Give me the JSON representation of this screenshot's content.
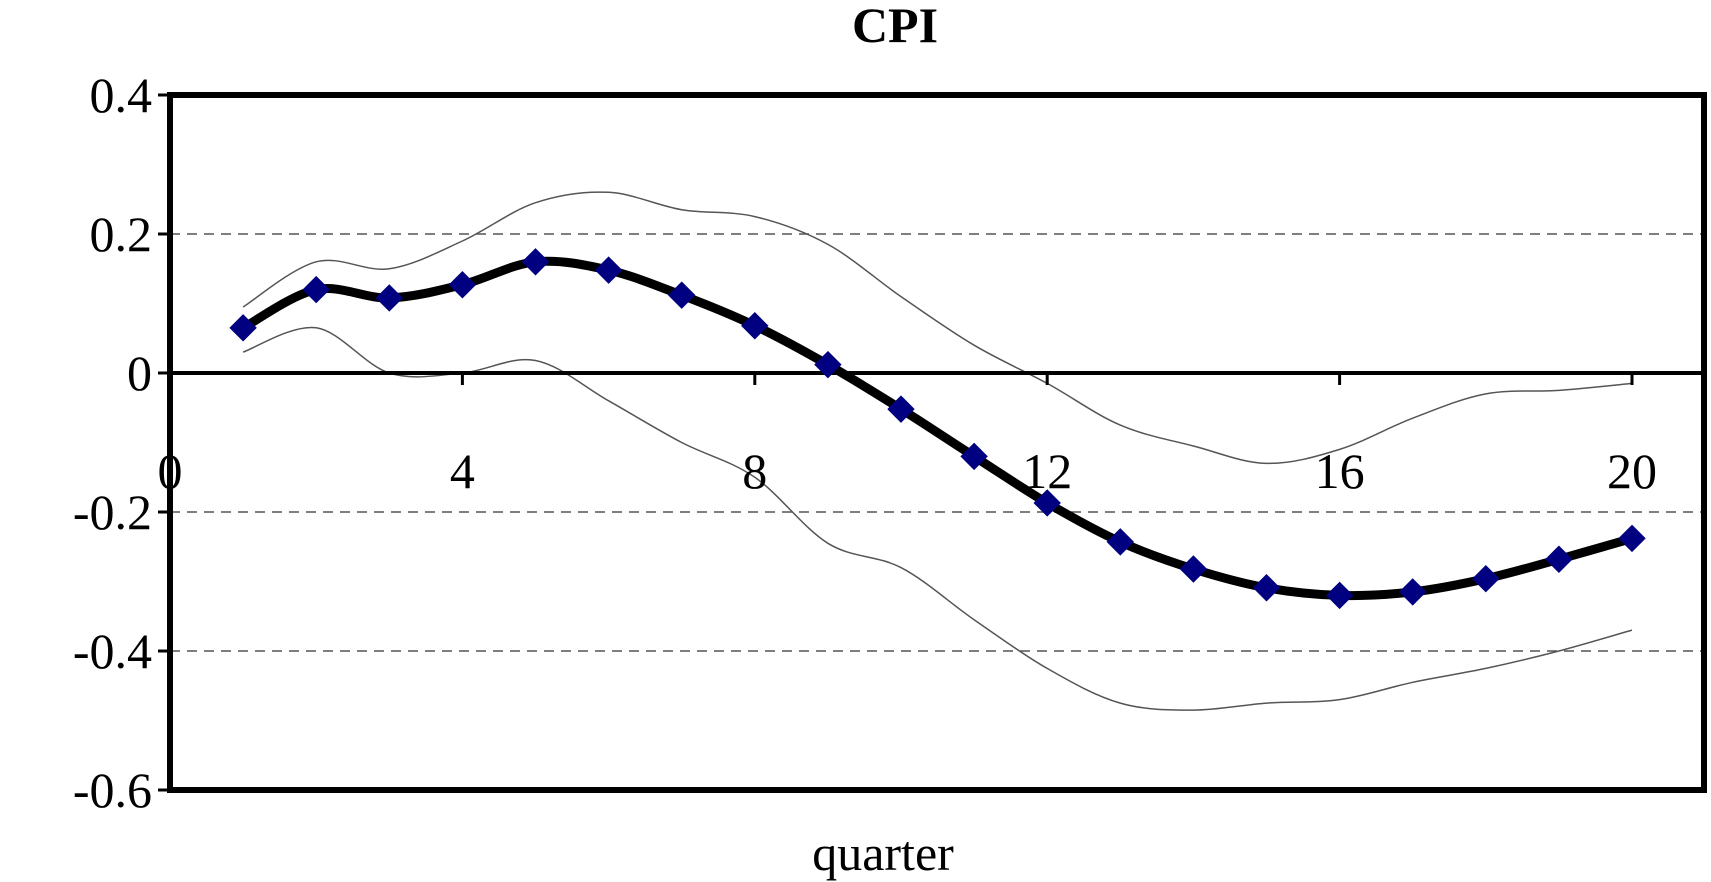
{
  "chart_data": {
    "type": "line",
    "title": "CPI",
    "xlabel": "quarter",
    "ylabel": "",
    "xlim": [
      0,
      21
    ],
    "ylim": [
      -0.6,
      0.4
    ],
    "x_ticks": [
      0,
      4,
      8,
      12,
      16,
      20
    ],
    "y_ticks": [
      0.4,
      0.2,
      0,
      -0.2,
      -0.4,
      -0.6
    ],
    "x_tick_labels": [
      "0",
      "4",
      "8",
      "12",
      "16",
      "20"
    ],
    "y_tick_labels": [
      "0.4",
      "0.2",
      "0",
      "-0.2",
      "-0.4",
      "-0.6"
    ],
    "grid": "horizontal-dashed",
    "legend": "none",
    "x": [
      1,
      2,
      3,
      4,
      5,
      6,
      7,
      8,
      9,
      10,
      11,
      12,
      13,
      14,
      15,
      16,
      17,
      18,
      19,
      20
    ],
    "series": [
      {
        "role": "response",
        "color": "#000000",
        "marker_color": "#000080",
        "values": [
          0.065,
          0.12,
          0.108,
          0.127,
          0.16,
          0.148,
          0.112,
          0.068,
          0.012,
          -0.052,
          -0.12,
          -0.187,
          -0.243,
          -0.282,
          -0.309,
          -0.32,
          -0.315,
          -0.296,
          -0.268,
          -0.238
        ]
      },
      {
        "role": "upper-band",
        "color": "#555555",
        "values": [
          0.095,
          0.16,
          0.15,
          0.19,
          0.245,
          0.26,
          0.235,
          0.225,
          0.185,
          0.11,
          0.04,
          -0.015,
          -0.075,
          -0.105,
          -0.13,
          -0.11,
          -0.065,
          -0.03,
          -0.025,
          -0.015
        ]
      },
      {
        "role": "lower-band",
        "color": "#555555",
        "values": [
          0.03,
          0.065,
          0.0,
          0.0,
          0.018,
          -0.04,
          -0.1,
          -0.15,
          -0.245,
          -0.28,
          -0.355,
          -0.425,
          -0.475,
          -0.485,
          -0.475,
          -0.47,
          -0.445,
          -0.425,
          -0.4,
          -0.37
        ]
      }
    ]
  }
}
